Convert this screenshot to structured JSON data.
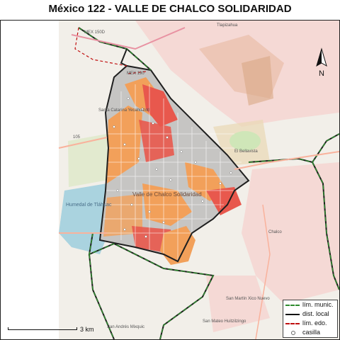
{
  "title": "México 122 - VALLE DE CHALCO SOLIDARIDAD",
  "legend": {
    "items": [
      {
        "label": "lím. munic.",
        "style": "green-dashed"
      },
      {
        "label": "dist. local",
        "style": "black-solid"
      },
      {
        "label": "lím. edo.",
        "style": "red-dashed"
      },
      {
        "label": "casilla",
        "style": "circle"
      }
    ]
  },
  "scale": {
    "label": "3 km"
  },
  "north": {
    "label": "N"
  },
  "map_labels": {
    "city": "Valle de Chalco Solidaridad",
    "santa_catarina": "Santa Catarina Yecahuizotl",
    "tlahuac": "Humedal de Tláhuac",
    "chalco": "Chalco",
    "san_martin": "San Martín Xico Nuevo",
    "san_andres": "San Andrés Mixquic",
    "san_mateo": "San Mateo Huitzilzingo",
    "el_bellavista": "El Bellavista",
    "road_105": "105",
    "mex150": "MEX 150D",
    "mex190": "MEX 190",
    "la_paz": "Tlapizahua"
  },
  "colors": {
    "pale_urban": "#f7c9c3",
    "medium": "#f2a05a",
    "dark": "#e8584d",
    "grey": "#c6c5c3",
    "water": "#aad3df",
    "boundary": "#1f1f1f",
    "municipal": "#2e8b2e",
    "state": "#c01010"
  }
}
